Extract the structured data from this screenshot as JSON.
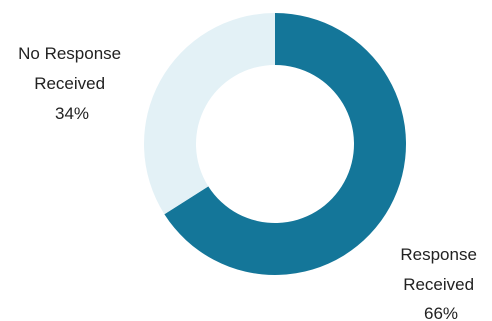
{
  "chart_data": {
    "type": "pie",
    "variant": "donut",
    "start_angle_deg": 0,
    "direction": "clockwise",
    "slices": [
      {
        "label_lines": [
          "Response",
          "Received",
          "66%"
        ],
        "value": 66,
        "color": "#147699"
      },
      {
        "label_lines": [
          "No Response",
          "Received",
          "34%"
        ],
        "value": 34,
        "color": "#E3F1F6"
      }
    ]
  }
}
